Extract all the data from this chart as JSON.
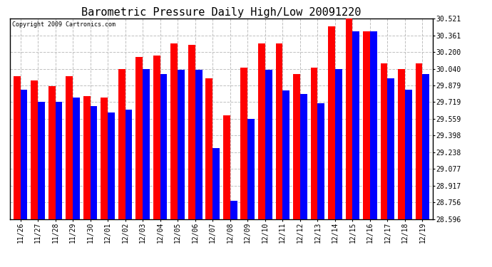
{
  "title": "Barometric Pressure Daily High/Low 20091220",
  "copyright": "Copyright 2009 Cartronics.com",
  "dates": [
    "11/26",
    "11/27",
    "11/28",
    "11/29",
    "11/30",
    "12/01",
    "12/02",
    "12/03",
    "12/04",
    "12/05",
    "12/06",
    "12/07",
    "12/08",
    "12/09",
    "12/10",
    "12/11",
    "12/12",
    "12/13",
    "12/14",
    "12/15",
    "12/16",
    "12/17",
    "12/18",
    "12/19"
  ],
  "highs": [
    29.97,
    29.93,
    29.87,
    29.97,
    29.78,
    29.76,
    30.04,
    30.15,
    30.17,
    30.28,
    30.27,
    29.95,
    29.59,
    30.05,
    30.28,
    30.28,
    29.99,
    30.05,
    30.45,
    30.52,
    30.4,
    30.09,
    30.04,
    30.09
  ],
  "lows": [
    29.84,
    29.72,
    29.72,
    29.76,
    29.68,
    29.62,
    29.65,
    30.04,
    29.99,
    30.03,
    30.03,
    29.28,
    28.77,
    29.56,
    30.03,
    29.83,
    29.8,
    29.71,
    30.04,
    30.4,
    30.4,
    29.95,
    29.84,
    29.99
  ],
  "yticks": [
    28.596,
    28.756,
    28.917,
    29.077,
    29.238,
    29.398,
    29.559,
    29.719,
    29.879,
    30.04,
    30.2,
    30.361,
    30.521
  ],
  "ymin": 28.596,
  "ymax": 30.521,
  "high_color": "#ff0000",
  "low_color": "#0000ff",
  "bg_color": "#ffffff",
  "grid_color": "#c0c0c0",
  "title_fontsize": 11,
  "bar_width": 0.4,
  "figsize": [
    6.9,
    3.75
  ],
  "dpi": 100
}
